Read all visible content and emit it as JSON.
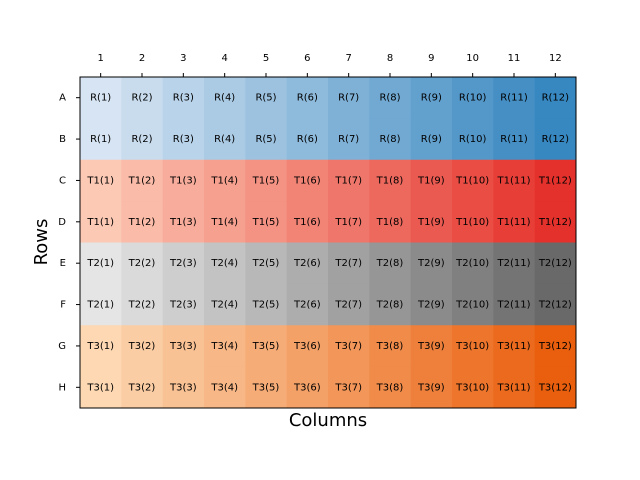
{
  "chart_data": {
    "type": "plate",
    "x_label": "Columns",
    "y_label": "Rows",
    "columns": [
      "1",
      "2",
      "3",
      "4",
      "5",
      "6",
      "7",
      "8",
      "9",
      "10",
      "11",
      "12"
    ],
    "rows": [
      "A",
      "B",
      "C",
      "D",
      "E",
      "F",
      "G",
      "H"
    ],
    "row_colors": [
      [
        "#d6e4f3",
        "#3787c0"
      ],
      [
        "#d6e4f3",
        "#3787c0"
      ],
      [
        "#fcc9b5",
        "#e5312b"
      ],
      [
        "#fcc9b5",
        "#e5312b"
      ],
      [
        "#e5e5e5",
        "#696969"
      ],
      [
        "#e5e5e5",
        "#696969"
      ],
      [
        "#fdd8b3",
        "#e95f0e"
      ],
      [
        "#fdd8b3",
        "#e95f0e"
      ]
    ],
    "cells": [
      [
        "R(1)",
        "R(2)",
        "R(3)",
        "R(4)",
        "R(5)",
        "R(6)",
        "R(7)",
        "R(8)",
        "R(9)",
        "R(10)",
        "R(11)",
        "R(12)"
      ],
      [
        "R(1)",
        "R(2)",
        "R(3)",
        "R(4)",
        "R(5)",
        "R(6)",
        "R(7)",
        "R(8)",
        "R(9)",
        "R(10)",
        "R(11)",
        "R(12)"
      ],
      [
        "T1(1)",
        "T1(2)",
        "T1(3)",
        "T1(4)",
        "T1(5)",
        "T1(6)",
        "T1(7)",
        "T1(8)",
        "T1(9)",
        "T1(10)",
        "T1(11)",
        "T1(12)"
      ],
      [
        "T1(1)",
        "T1(2)",
        "T1(3)",
        "T1(4)",
        "T1(5)",
        "T1(6)",
        "T1(7)",
        "T1(8)",
        "T1(9)",
        "T1(10)",
        "T1(11)",
        "T1(12)"
      ],
      [
        "T2(1)",
        "T2(2)",
        "T2(3)",
        "T2(4)",
        "T2(5)",
        "T2(6)",
        "T2(7)",
        "T2(8)",
        "T2(9)",
        "T2(10)",
        "T2(11)",
        "T2(12)"
      ],
      [
        "T2(1)",
        "T2(2)",
        "T2(3)",
        "T2(4)",
        "T2(5)",
        "T2(6)",
        "T2(7)",
        "T2(8)",
        "T2(9)",
        "T2(10)",
        "T2(11)",
        "T2(12)"
      ],
      [
        "T3(1)",
        "T3(2)",
        "T3(3)",
        "T3(4)",
        "T3(5)",
        "T3(6)",
        "T3(7)",
        "T3(8)",
        "T3(9)",
        "T3(10)",
        "T3(11)",
        "T3(12)"
      ],
      [
        "T3(1)",
        "T3(2)",
        "T3(3)",
        "T3(4)",
        "T3(5)",
        "T3(6)",
        "T3(7)",
        "T3(8)",
        "T3(9)",
        "T3(10)",
        "T3(11)",
        "T3(12)"
      ]
    ]
  }
}
